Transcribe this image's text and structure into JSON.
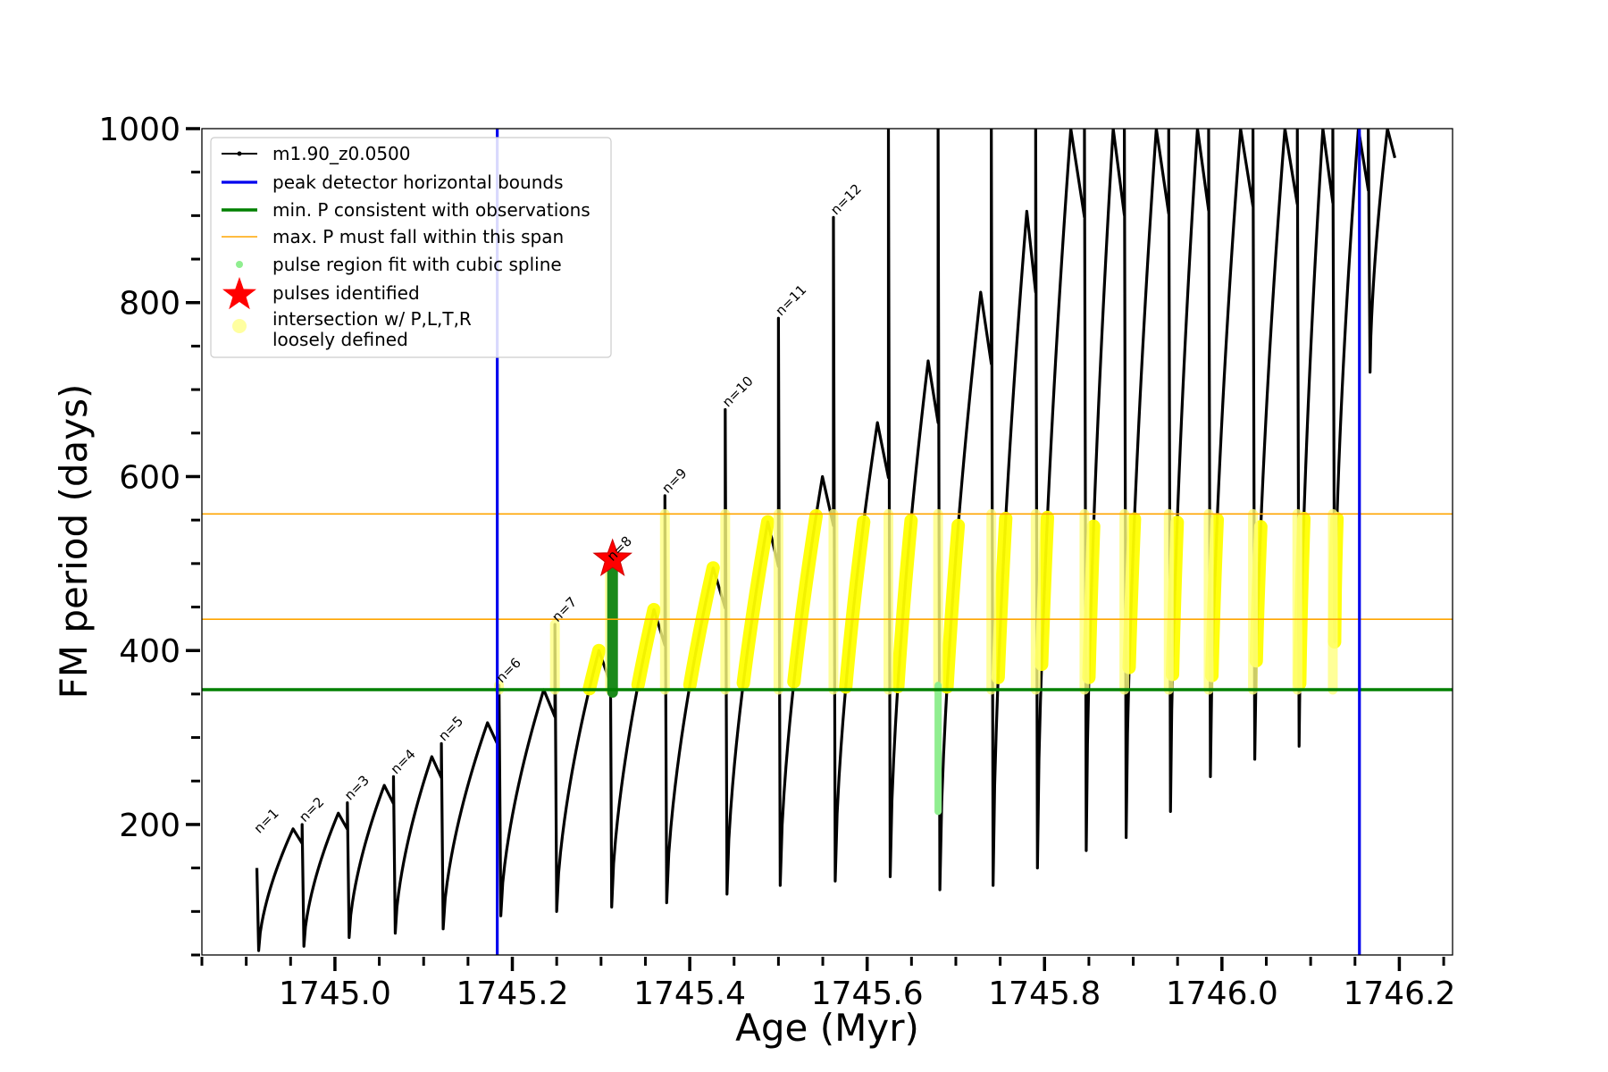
{
  "chart_data": {
    "type": "line",
    "xlabel": "Age (Myr)",
    "ylabel": "FM period (days)",
    "xlim": [
      1744.85,
      1746.26
    ],
    "ylim": [
      50,
      1000
    ],
    "x_ticks": [
      {
        "value": 1745.0,
        "label": "1745.0"
      },
      {
        "value": 1745.2,
        "label": "1745.2"
      },
      {
        "value": 1745.4,
        "label": "1745.4"
      },
      {
        "value": 1745.6,
        "label": "1745.6"
      },
      {
        "value": 1745.8,
        "label": "1745.8"
      },
      {
        "value": 1746.0,
        "label": "1746.0"
      },
      {
        "value": 1746.2,
        "label": "1746.2"
      }
    ],
    "y_ticks": [
      {
        "value": 200,
        "label": "200"
      },
      {
        "value": 400,
        "label": "400"
      },
      {
        "value": 600,
        "label": "600"
      },
      {
        "value": 800,
        "label": "800"
      },
      {
        "value": 1000,
        "label": "1000"
      }
    ],
    "minor_x_step": 0.05,
    "minor_y_step": 50,
    "legend": {
      "position": "top-left",
      "entries": [
        {
          "label": "m1.90_z0.0500",
          "kind": "line-dot",
          "color": "#000000"
        },
        {
          "label": "peak detector horizontal bounds",
          "kind": "line",
          "color": "#0000ee"
        },
        {
          "label": "min. P consistent with observations",
          "kind": "line-thick",
          "color": "#008000"
        },
        {
          "label": "max. P must fall within this span",
          "kind": "line-thin",
          "color": "#ffa500"
        },
        {
          "label": "pulse region fit with cubic spline",
          "kind": "dot",
          "color": "#90ee90"
        },
        {
          "label": "pulses identified",
          "kind": "star",
          "color": "#ff0000"
        },
        {
          "label": "intersection w/ P,L,T,R",
          "label2": "loosely defined",
          "kind": "circle",
          "color": "#ffffa0"
        }
      ]
    },
    "reference_lines": {
      "vertical_blue": [
        1745.183,
        1746.155
      ],
      "horizontal_green": 355,
      "horizontal_orange": [
        436,
        557
      ]
    },
    "cycles": [
      {
        "n": "n=1",
        "start": 1744.912,
        "end": 1744.963,
        "min": 55,
        "max": 195,
        "spike": 187
      },
      {
        "n": "n=2",
        "start": 1744.963,
        "end": 1745.014,
        "min": 60,
        "max": 213,
        "spike": 200
      },
      {
        "n": "n=3",
        "start": 1745.014,
        "end": 1745.066,
        "min": 70,
        "max": 245,
        "spike": 225
      },
      {
        "n": "n=4",
        "start": 1745.066,
        "end": 1745.12,
        "min": 75,
        "max": 278,
        "spike": 255
      },
      {
        "n": "n=5",
        "start": 1745.12,
        "end": 1745.185,
        "min": 80,
        "max": 317,
        "spike": 293
      },
      {
        "n": "n=6",
        "start": 1745.185,
        "end": 1745.248,
        "min": 95,
        "max": 355,
        "spike": 360
      },
      {
        "n": "n=7",
        "start": 1745.248,
        "end": 1745.31,
        "min": 100,
        "max": 400,
        "spike": 430
      },
      {
        "n": "n=8",
        "start": 1745.31,
        "end": 1745.372,
        "min": 105,
        "max": 447,
        "spike": 500
      },
      {
        "n": "n=9",
        "start": 1745.372,
        "end": 1745.44,
        "min": 110,
        "max": 495,
        "spike": 578
      },
      {
        "n": "n=10",
        "start": 1745.44,
        "end": 1745.5,
        "min": 120,
        "max": 548,
        "spike": 677
      },
      {
        "n": "n=11",
        "start": 1745.5,
        "end": 1745.562,
        "min": 130,
        "max": 600,
        "spike": 782
      },
      {
        "n": "n=12",
        "start": 1745.562,
        "end": 1745.624,
        "min": 135,
        "max": 662,
        "spike": 898
      },
      {
        "n": "",
        "start": 1745.624,
        "end": 1745.68,
        "min": 140,
        "max": 733,
        "spike": 1000
      },
      {
        "n": "",
        "start": 1745.68,
        "end": 1745.74,
        "min": 125,
        "max": 812,
        "spike": 1000
      },
      {
        "n": "",
        "start": 1745.74,
        "end": 1745.79,
        "min": 130,
        "max": 905,
        "spike": 1000
      },
      {
        "n": "",
        "start": 1745.79,
        "end": 1745.845,
        "min": 150,
        "max": 1000,
        "spike": 1000
      },
      {
        "n": "",
        "start": 1745.845,
        "end": 1745.89,
        "min": 170,
        "max": 1000,
        "spike": 1000
      },
      {
        "n": "",
        "start": 1745.89,
        "end": 1745.94,
        "min": 185,
        "max": 1000,
        "spike": 1000
      },
      {
        "n": "",
        "start": 1745.94,
        "end": 1745.985,
        "min": 215,
        "max": 1000,
        "spike": 1000
      },
      {
        "n": "",
        "start": 1745.985,
        "end": 1746.035,
        "min": 255,
        "max": 1000,
        "spike": 1000
      },
      {
        "n": "",
        "start": 1746.035,
        "end": 1746.085,
        "min": 275,
        "max": 1000,
        "spike": 1000
      },
      {
        "n": "",
        "start": 1746.085,
        "end": 1746.125,
        "min": 290,
        "max": 1000,
        "spike": 1000
      },
      {
        "n": "",
        "start": 1746.125,
        "end": 1746.165,
        "min": 410,
        "max": 1000,
        "spike": 1000
      },
      {
        "n": "",
        "start": 1746.165,
        "end": 1746.195,
        "min": 720,
        "max": 1000,
        "spike": 1000
      }
    ],
    "pulse_identified": {
      "x": 1745.313,
      "y": 505
    },
    "green_pulse_segment": {
      "x": 1745.313,
      "y_from": 352,
      "y_to": 500
    },
    "lightgreen_spline_segment": {
      "x": 1745.68,
      "y_from": 215,
      "y_to": 360
    }
  }
}
